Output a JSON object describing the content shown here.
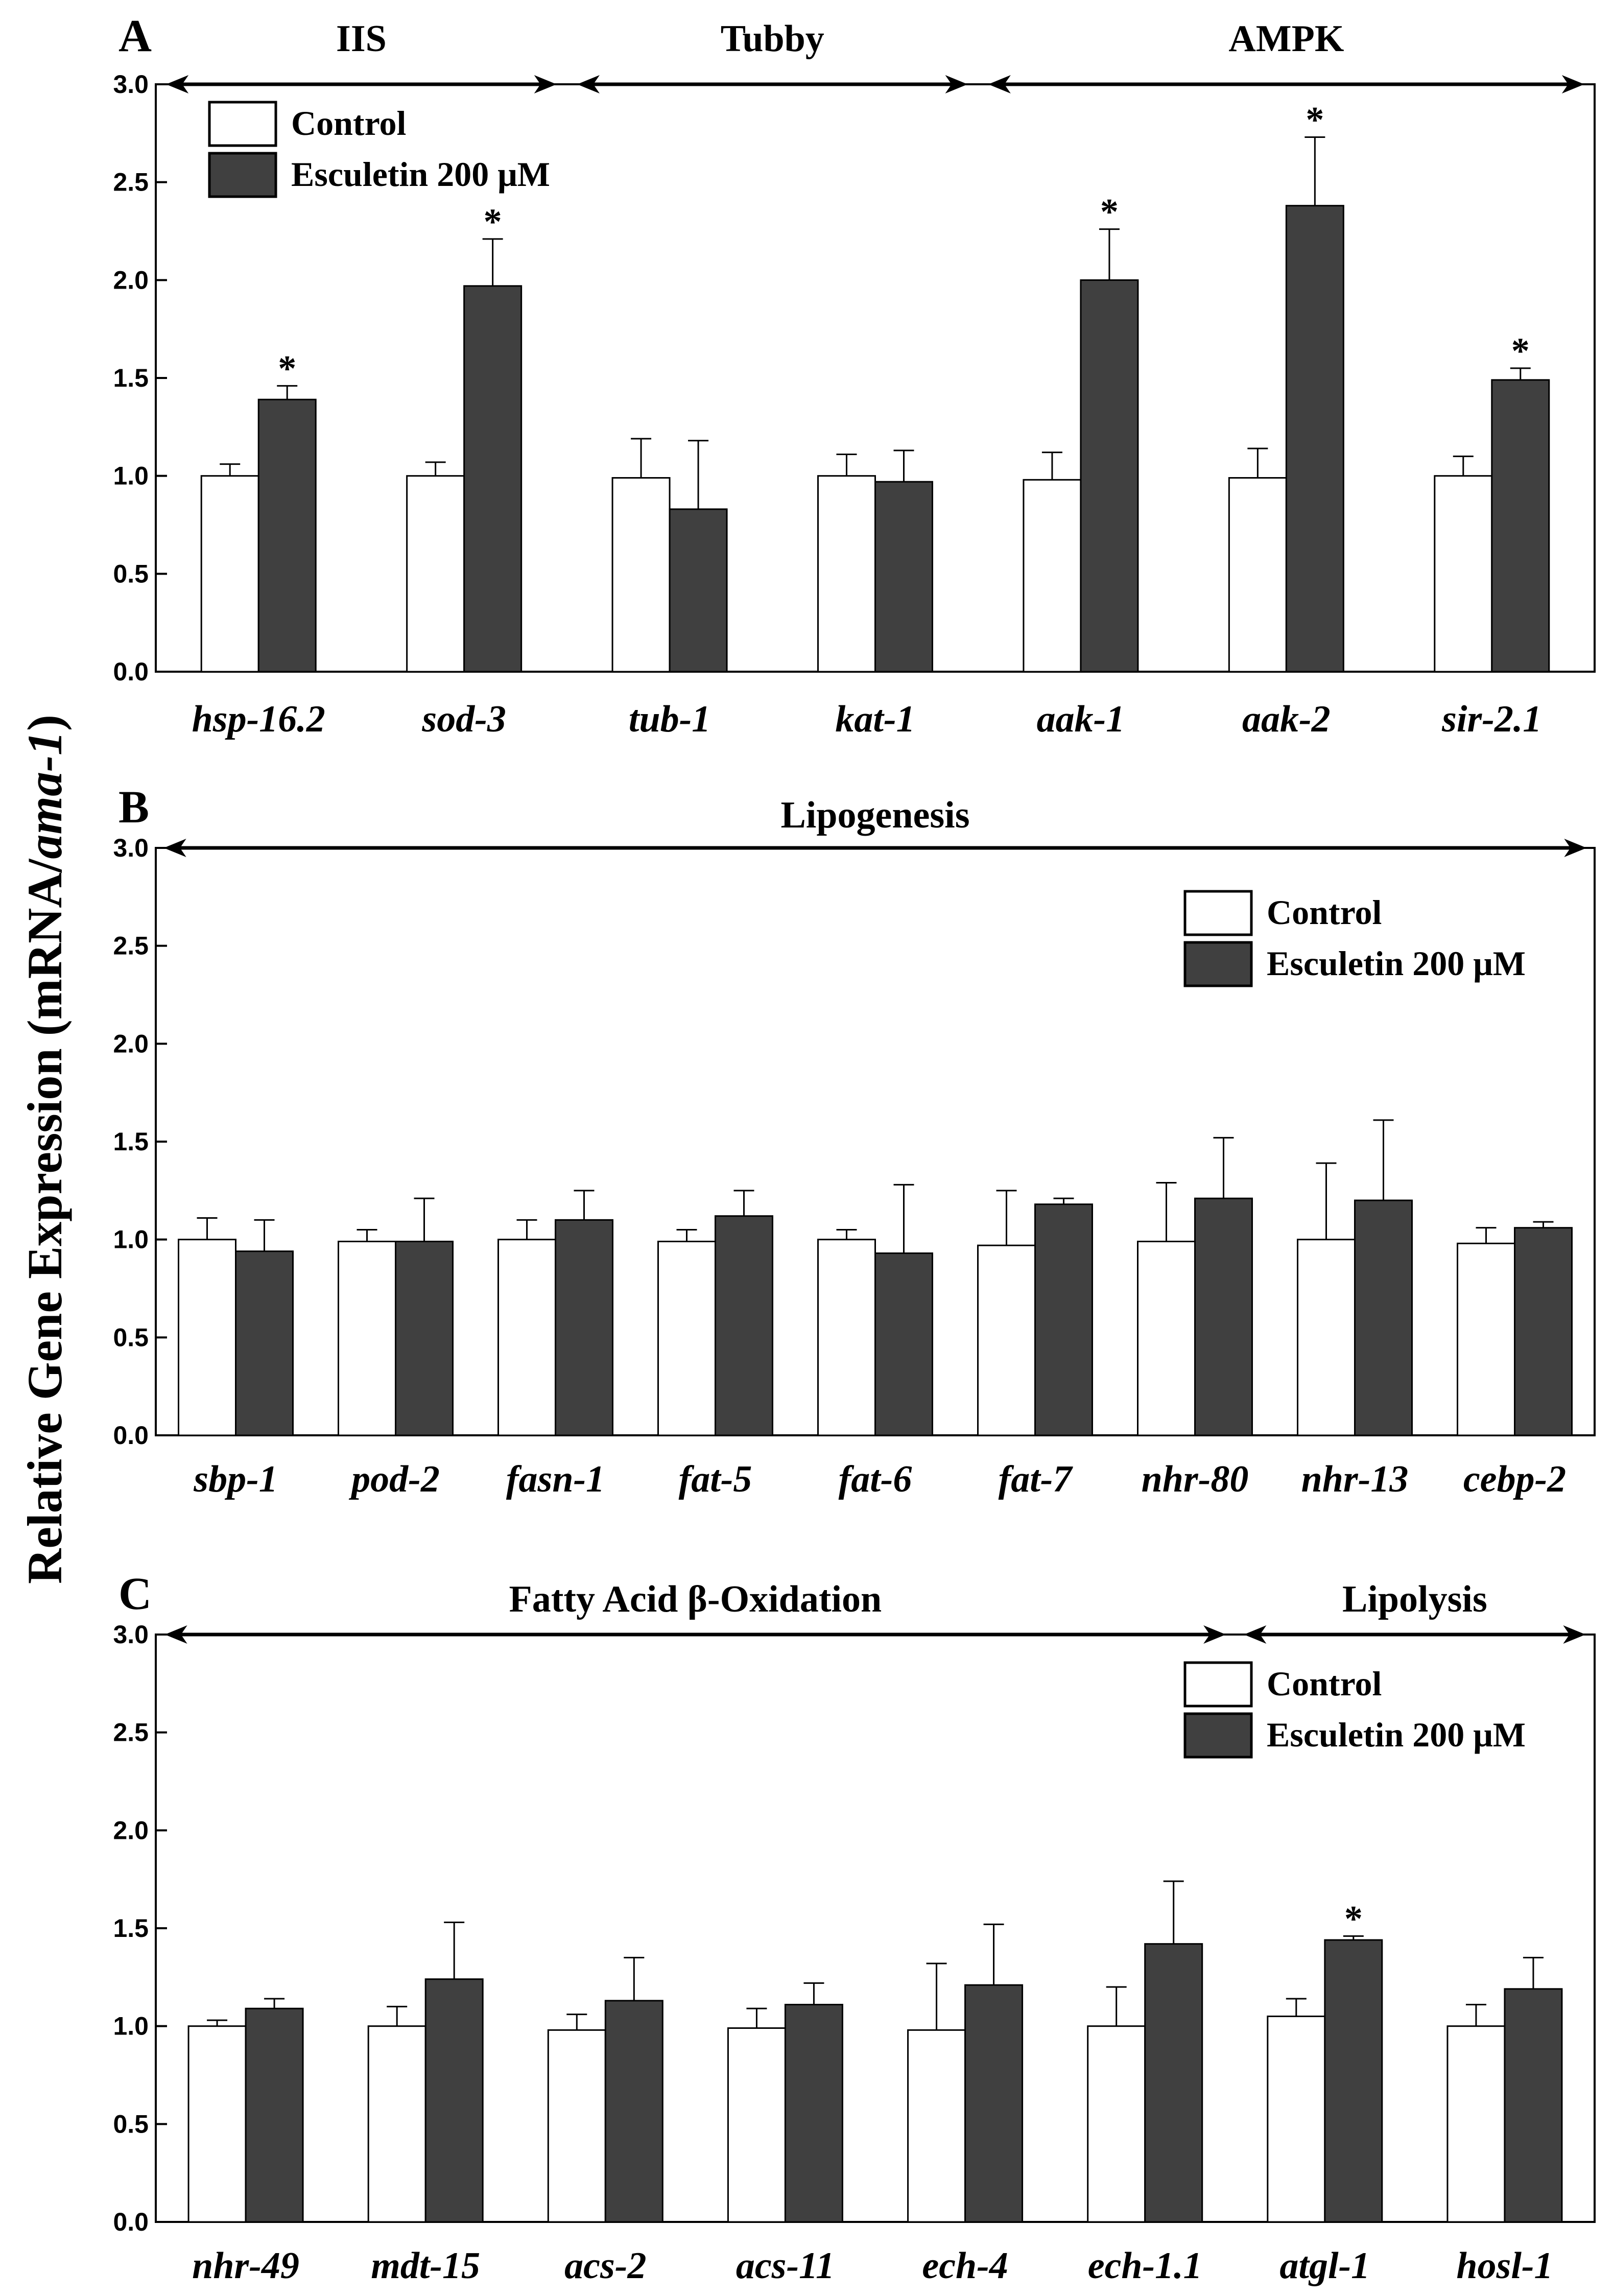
{
  "figure": {
    "ylabel_prefix": "Relative Gene Expression (mRNA/",
    "ylabel_italic": "ama-1",
    "ylabel_suffix": ")",
    "colors": {
      "control": "#ffffff",
      "esculetin": "#404040",
      "stroke": "#000000"
    }
  },
  "chart_data": [
    {
      "type": "bar",
      "panel": "A",
      "ylim": [
        0,
        3.0
      ],
      "yticks": [
        "0.0",
        "0.5",
        "1.0",
        "1.5",
        "2.0",
        "2.5",
        "3.0"
      ],
      "categories": [
        "hsp-16.2",
        "sod-3",
        "tub-1",
        "kat-1",
        "aak-1",
        "aak-2",
        "sir-2.1"
      ],
      "series": [
        {
          "name": "Control",
          "values": [
            1.0,
            1.0,
            0.99,
            1.0,
            0.98,
            0.99,
            1.0
          ],
          "errors": [
            0.06,
            0.07,
            0.2,
            0.11,
            0.14,
            0.15,
            0.1
          ]
        },
        {
          "name": "Esculetin 200 μM",
          "values": [
            1.39,
            1.97,
            0.83,
            0.97,
            2.0,
            2.38,
            1.49
          ],
          "errors": [
            0.07,
            0.24,
            0.35,
            0.16,
            0.26,
            0.35,
            0.06
          ]
        }
      ],
      "significance": [
        "*",
        "*",
        "",
        "",
        "*",
        "*",
        "*"
      ],
      "groups": [
        {
          "label": "IIS",
          "from": 0,
          "to": 1
        },
        {
          "label": "Tubby",
          "from": 2,
          "to": 3
        },
        {
          "label": "AMPK",
          "from": 4,
          "to": 6
        }
      ],
      "legend": {
        "position": "top-left",
        "entries": [
          "Control",
          "Esculetin 200 μM"
        ]
      }
    },
    {
      "type": "bar",
      "panel": "B",
      "ylim": [
        0,
        3.0
      ],
      "yticks": [
        "0.0",
        "0.5",
        "1.0",
        "1.5",
        "2.0",
        "2.5",
        "3.0"
      ],
      "categories": [
        "sbp-1",
        "pod-2",
        "fasn-1",
        "fat-5",
        "fat-6",
        "fat-7",
        "nhr-80",
        "nhr-13",
        "cebp-2"
      ],
      "series": [
        {
          "name": "Control",
          "values": [
            1.0,
            0.99,
            1.0,
            0.99,
            1.0,
            0.97,
            0.99,
            1.0,
            0.98
          ],
          "errors": [
            0.11,
            0.06,
            0.1,
            0.06,
            0.05,
            0.28,
            0.3,
            0.39,
            0.08
          ]
        },
        {
          "name": "Esculetin 200 μM",
          "values": [
            0.94,
            0.99,
            1.1,
            1.12,
            0.93,
            1.18,
            1.21,
            1.2,
            1.06
          ],
          "errors": [
            0.16,
            0.22,
            0.15,
            0.13,
            0.35,
            0.03,
            0.31,
            0.41,
            0.03
          ]
        }
      ],
      "significance": [
        "",
        "",
        "",
        "",
        "",
        "",
        "",
        "",
        ""
      ],
      "groups": [
        {
          "label": "Lipogenesis",
          "from": 0,
          "to": 8
        }
      ],
      "legend": {
        "position": "top-right",
        "entries": [
          "Control",
          "Esculetin 200 μM"
        ]
      }
    },
    {
      "type": "bar",
      "panel": "C",
      "ylim": [
        0,
        3.0
      ],
      "yticks": [
        "0.0",
        "0.5",
        "1.0",
        "1.5",
        "2.0",
        "2.5",
        "3.0"
      ],
      "categories": [
        "nhr-49",
        "mdt-15",
        "acs-2",
        "acs-11",
        "ech-4",
        "ech-1.1",
        "atgl-1",
        "hosl-1"
      ],
      "series": [
        {
          "name": "Control",
          "values": [
            1.0,
            1.0,
            0.98,
            0.99,
            0.98,
            1.0,
            1.05,
            1.0
          ],
          "errors": [
            0.03,
            0.1,
            0.08,
            0.1,
            0.34,
            0.2,
            0.09,
            0.11
          ]
        },
        {
          "name": "Esculetin 200 μM",
          "values": [
            1.09,
            1.24,
            1.13,
            1.11,
            1.21,
            1.42,
            1.44,
            1.19
          ],
          "errors": [
            0.05,
            0.29,
            0.22,
            0.11,
            0.31,
            0.32,
            0.02,
            0.16
          ]
        }
      ],
      "significance": [
        "",
        "",
        "",
        "",
        "",
        "",
        "*",
        ""
      ],
      "groups": [
        {
          "label": "Fatty Acid β-Oxidation",
          "from": 0,
          "to": 5
        },
        {
          "label": "Lipolysis",
          "from": 6,
          "to": 7
        }
      ],
      "legend": {
        "position": "top-right",
        "entries": [
          "Control",
          "Esculetin 200 μM"
        ]
      }
    }
  ]
}
